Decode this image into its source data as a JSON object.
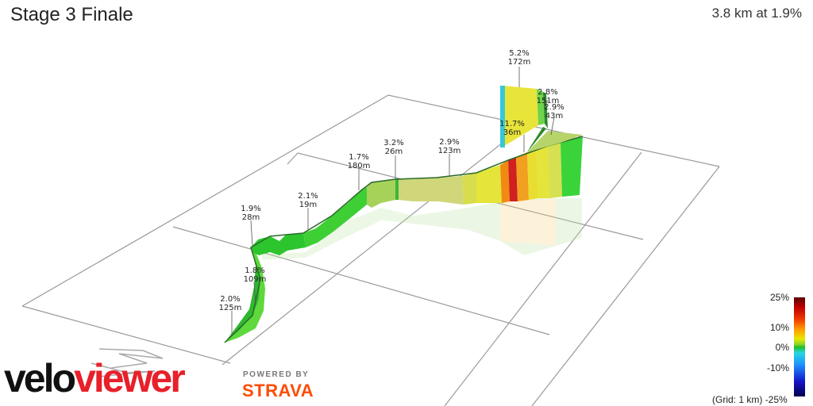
{
  "header": {
    "title": "Stage 3 Finale",
    "summary": "3.8 km at 1.9%"
  },
  "segment_labels": [
    {
      "grade": "5.2%",
      "length": "172m"
    },
    {
      "grade": "2.8%",
      "length": "151m"
    },
    {
      "grade": "2.9%",
      "length": "43m"
    },
    {
      "grade": "11.7%",
      "length": "36m"
    },
    {
      "grade": "3.2%",
      "length": "26m"
    },
    {
      "grade": "2.9%",
      "length": "123m"
    },
    {
      "grade": "1.7%",
      "length": "180m"
    },
    {
      "grade": "2.1%",
      "length": "19m"
    },
    {
      "grade": "1.9%",
      "length": "28m"
    },
    {
      "grade": "1.8%",
      "length": "109m"
    },
    {
      "grade": "2.0%",
      "length": "125m"
    }
  ],
  "legend": {
    "ticks": [
      "25%",
      "10%",
      "0%",
      "-10%",
      "-25%"
    ],
    "grid_note": "(Grid: 1 km)"
  },
  "branding": {
    "logo_part1": "velo",
    "logo_part2": "viewer",
    "powered_by": "POWERED BY",
    "strava": "STRAVA"
  },
  "colors": {
    "flat_green": "#22c422",
    "mild_yellow": "#e4e43a",
    "steep_orange": "#f07a10",
    "steep_red": "#d02020",
    "brand_red": "#e8202a",
    "strava_orange": "#fc4c02"
  }
}
